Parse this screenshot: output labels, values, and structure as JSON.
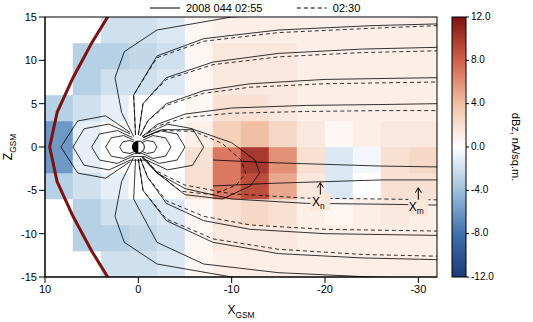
{
  "chart_data": {
    "type": "line",
    "xlabel": "XGSM",
    "ylabel": "ZGSM",
    "xlim": [
      10,
      -32
    ],
    "xticks": [
      10,
      0,
      -10,
      -20,
      -30
    ],
    "ylim": [
      -15,
      15
    ],
    "yticks": [
      -15,
      -10,
      -5,
      0,
      5,
      10,
      15
    ],
    "legend": "top",
    "series": [
      {
        "name": "2008 044 02:55",
        "color": "#000000",
        "line_style": "solid",
        "lines": [
          {
            "x": [
              0.25,
              0.9,
              1.66,
              2,
              1.66,
              0.9,
              0.25,
              -0.25,
              -0.9,
              -1.66,
              -2,
              -1.66,
              -0.9,
              -0.25
            ],
            "z": [
              0.43,
              0.75,
              0.6,
              0,
              -0.6,
              -0.75,
              -0.43,
              -0.43,
              -0.75,
              -0.6,
              0,
              0.6,
              0.75,
              0.43
            ]
          },
          {
            "x": [
              0.44,
              1.57,
              2.91,
              3.5,
              2.91,
              1.57,
              0.44,
              -0.44,
              -1.57,
              -2.91,
              -3.5,
              -2.91,
              -1.57,
              -0.44
            ],
            "z": [
              0.76,
              1.32,
              1.06,
              0,
              -1.06,
              -1.32,
              -0.76,
              -0.76,
              -1.32,
              -1.06,
              0,
              1.06,
              1.32,
              0.76
            ]
          },
          {
            "x": [
              0.63,
              2.25,
              4.15,
              5,
              4.15,
              2.25,
              0.63,
              -0.63,
              -2.25,
              -4.15,
              -5,
              -4.15,
              -2.25,
              -0.63
            ],
            "z": [
              1.09,
              1.89,
              1.51,
              0,
              -1.51,
              -1.89,
              -1.09,
              -1.09,
              -1.89,
              -1.51,
              0,
              1.51,
              1.89,
              1.09
            ]
          },
          {
            "x": [
              0.88,
              3.14,
              5.81,
              7,
              5.81,
              3.14,
              0.88,
              -0.88,
              -3.14,
              -5.81,
              -7,
              -5.81,
              -3.14,
              -0.88
            ],
            "z": [
              1.52,
              2.64,
              2.11,
              0,
              -2.11,
              -2.64,
              -1.52,
              -1.52,
              -2.64,
              -2.11,
              0,
              2.11,
              2.64,
              1.52
            ]
          },
          {
            "x": [
              0.9,
              3.5,
              6.5,
              8.3,
              6.5,
              3.5,
              0.9
            ],
            "z": [
              1.7,
              3.6,
              3,
              0,
              -3,
              -3.6,
              -1.7
            ]
          },
          {
            "x": [
              0.5,
              1.8,
              2.5,
              1.5,
              -2,
              -10,
              -20,
              -32
            ],
            "z": [
              1.2,
              4,
              8,
              11,
              13.5,
              15,
              15.5,
              15.8
            ]
          },
          {
            "x": [
              0.5,
              1.8,
              2.5,
              1.5,
              -2,
              -10,
              -20,
              -32
            ],
            "z": [
              -1.2,
              -4,
              -8,
              -11,
              -13.5,
              -15,
              -15.5,
              -15.8
            ]
          },
          {
            "x": [
              -0.2,
              -1,
              -3,
              -7,
              -12,
              -20,
              -32
            ],
            "z": [
              1.3,
              3,
              5,
              6.5,
              7.3,
              7.8,
              8
            ]
          },
          {
            "x": [
              0,
              -0.5,
              -3,
              -8,
              -15,
              -24,
              -32
            ],
            "z": [
              1.4,
              5,
              8,
              9.8,
              10.8,
              11.3,
              11.5
            ]
          },
          {
            "x": [
              0.3,
              0.5,
              -2,
              -7,
              -15,
              -25,
              -32
            ],
            "z": [
              1.4,
              6,
              10.5,
              12.5,
              13.5,
              14,
              14.2
            ]
          },
          {
            "x": [
              -0.4,
              -2,
              -5,
              -10,
              -18,
              -26,
              -32
            ],
            "z": [
              1.2,
              2.6,
              3.8,
              4.5,
              4.8,
              4.9,
              5
            ]
          },
          {
            "x": [
              -0.5,
              -2.5,
              -6,
              -10,
              -12.5,
              -13,
              -12,
              -9,
              -5,
              -2,
              -0.5
            ],
            "z": [
              1.1,
              2,
              2,
              0.5,
              -1.5,
              -3,
              -4.5,
              -6,
              -5.5,
              -3,
              -1.1
            ]
          },
          {
            "x": [
              -0.4,
              -2,
              -5,
              -10,
              -18,
              -26,
              -32
            ],
            "z": [
              -1.2,
              -3,
              -4.8,
              -6,
              -6.5,
              -6.6,
              -6.7
            ]
          },
          {
            "x": [
              -0.2,
              -1,
              -3,
              -7,
              -12,
              -20,
              -32
            ],
            "z": [
              -1.3,
              -3.5,
              -6.5,
              -8.5,
              -9.5,
              -10,
              -10.2
            ]
          },
          {
            "x": [
              0,
              -0.5,
              -3,
              -8,
              -15,
              -24,
              -32
            ],
            "z": [
              -1.4,
              -5,
              -8.5,
              -11,
              -12.3,
              -12.8,
              -13
            ]
          },
          {
            "x": [
              0.3,
              0.5,
              -2,
              -7,
              -15,
              -25,
              -32
            ],
            "z": [
              -1.4,
              -6,
              -11,
              -13.5,
              -14.5,
              -15,
              -15.2
            ]
          },
          {
            "x": [
              -8,
              -14,
              -20,
              -26,
              -32
            ],
            "z": [
              -1.5,
              -1.8,
              -2,
              -2.2,
              -2.3
            ]
          },
          {
            "x": [
              -8,
              -14,
              -20,
              -26,
              -32
            ],
            "z": [
              -4.5,
              -4.2,
              -4,
              -3.8,
              -3.8
            ]
          }
        ]
      },
      {
        "name": "02:30",
        "color": "#000000",
        "line_style": "dashed",
        "lines": [
          {
            "x": [
              -0.2,
              -1,
              -3,
              -7,
              -12,
              -20,
              -32
            ],
            "z": [
              1.3,
              3,
              4.8,
              6.2,
              6.9,
              7.3,
              7.5
            ]
          },
          {
            "x": [
              0,
              -0.5,
              -3,
              -8,
              -15,
              -24,
              -32
            ],
            "z": [
              1.4,
              5,
              7.8,
              9.5,
              10.4,
              10.9,
              11.1
            ]
          },
          {
            "x": [
              0.3,
              0.5,
              -2,
              -7,
              -15,
              -25,
              -32
            ],
            "z": [
              1.4,
              6,
              10.3,
              12.2,
              13.2,
              13.7,
              14
            ]
          },
          {
            "x": [
              -0.4,
              -2,
              -5,
              -10,
              -18,
              -26,
              -32
            ],
            "z": [
              1.2,
              2.4,
              3.4,
              3.9,
              4.1,
              4.2,
              4.2
            ]
          },
          {
            "x": [
              -0.2,
              -1,
              -3,
              -7,
              -12,
              -20,
              -32
            ],
            "z": [
              -1.3,
              -3.5,
              -6.2,
              -8,
              -9,
              -9.5,
              -9.7
            ]
          },
          {
            "x": [
              0,
              -0.5,
              -3,
              -8,
              -15,
              -24,
              -32
            ],
            "z": [
              -1.4,
              -5,
              -8.3,
              -10.6,
              -11.8,
              -12.4,
              -12.6
            ]
          },
          {
            "x": [
              -0.4,
              -2,
              -5,
              -10,
              -18,
              -26,
              -32
            ],
            "z": [
              -1.2,
              -2.8,
              -4.4,
              -5.4,
              -5.9,
              -6,
              -6.1
            ]
          },
          {
            "x": [
              -0.5,
              -2.5,
              -6,
              -9,
              -11,
              -11.5,
              -10.5,
              -8,
              -4.5,
              -2,
              -0.5
            ],
            "z": [
              1.1,
              1.9,
              1.8,
              0.4,
              -1.5,
              -3,
              -4.4,
              -5.5,
              -5.1,
              -2.9,
              -1.1
            ]
          }
        ]
      }
    ],
    "magnetopause": {
      "x": [
        2,
        3,
        5,
        7,
        8.7,
        9.5,
        8.7,
        7,
        5,
        3,
        2
      ],
      "z": [
        17,
        15.5,
        12,
        8,
        4,
        0,
        -4,
        -8,
        -12,
        -15.5,
        -17
      ],
      "value": 12
    },
    "dBz": {
      "x": [
        8.5,
        5.5,
        2.5,
        -0.5,
        -3.5,
        -6.5,
        -9.5,
        -12.5,
        -15.5,
        -18.5,
        -21.5,
        -24.5,
        -27.5,
        -30.5
      ],
      "z": [
        -13.5,
        -10.5,
        -7.5,
        -4.5,
        -1.5,
        1.5,
        4.5,
        7.5,
        10.5,
        13.5
      ],
      "cells": [
        [
          0,
          0,
          -2,
          -2,
          -1.5,
          0.5,
          1,
          1,
          1,
          1,
          1,
          1,
          1,
          1
        ],
        [
          0,
          -3,
          -3,
          -2.5,
          -2,
          0.5,
          1.5,
          1.5,
          1.5,
          1,
          1,
          1,
          1,
          1
        ],
        [
          0,
          -3,
          -2,
          -2,
          -1.5,
          0.5,
          2,
          2.5,
          2,
          1,
          0.5,
          1,
          1.5,
          1
        ],
        [
          -3,
          -2,
          -1,
          0,
          0,
          2,
          7,
          9,
          5,
          1.5,
          -1.5,
          0,
          2,
          2
        ],
        [
          -6,
          -1,
          0,
          0,
          0,
          2,
          7,
          10,
          6,
          2,
          -1.5,
          -0.5,
          2,
          2.5
        ],
        [
          -6,
          -1,
          0,
          0,
          0,
          1,
          3,
          4,
          2.5,
          1.5,
          0.5,
          1,
          1.5,
          1.5
        ],
        [
          -3,
          -2,
          -1,
          0,
          0,
          0.5,
          2,
          2,
          1.5,
          1,
          1,
          1,
          1,
          1
        ],
        [
          0,
          -3,
          -2,
          -2,
          -1.5,
          0.5,
          1.5,
          1.5,
          1.5,
          1,
          1,
          1,
          1,
          1
        ],
        [
          0,
          -3,
          -3,
          -2.5,
          -2,
          0.5,
          1.5,
          1.5,
          1.5,
          1,
          1,
          1,
          1,
          1
        ],
        [
          0,
          0,
          -2,
          -2,
          -1.5,
          0.5,
          1,
          1,
          1,
          1,
          1,
          1,
          1,
          1
        ]
      ]
    },
    "colorbar": {
      "label": "dBz, nA/sq.m.",
      "lim": [
        -12,
        12
      ],
      "ticks": [
        {
          "value": -12,
          "label": "-12.0"
        },
        {
          "value": -8,
          "label": "-8.0"
        },
        {
          "value": -4,
          "label": "-4.0"
        },
        {
          "value": 0,
          "label": "0.0"
        },
        {
          "value": 4,
          "label": "4.0"
        },
        {
          "value": 8,
          "label": "8.0"
        },
        {
          "value": 12,
          "label": "12.0"
        }
      ]
    },
    "annotations": [
      {
        "text": "Xn",
        "x": -19.5,
        "y": -5.6
      },
      {
        "text": "Xm",
        "x": -30,
        "y": -6.2
      }
    ]
  }
}
